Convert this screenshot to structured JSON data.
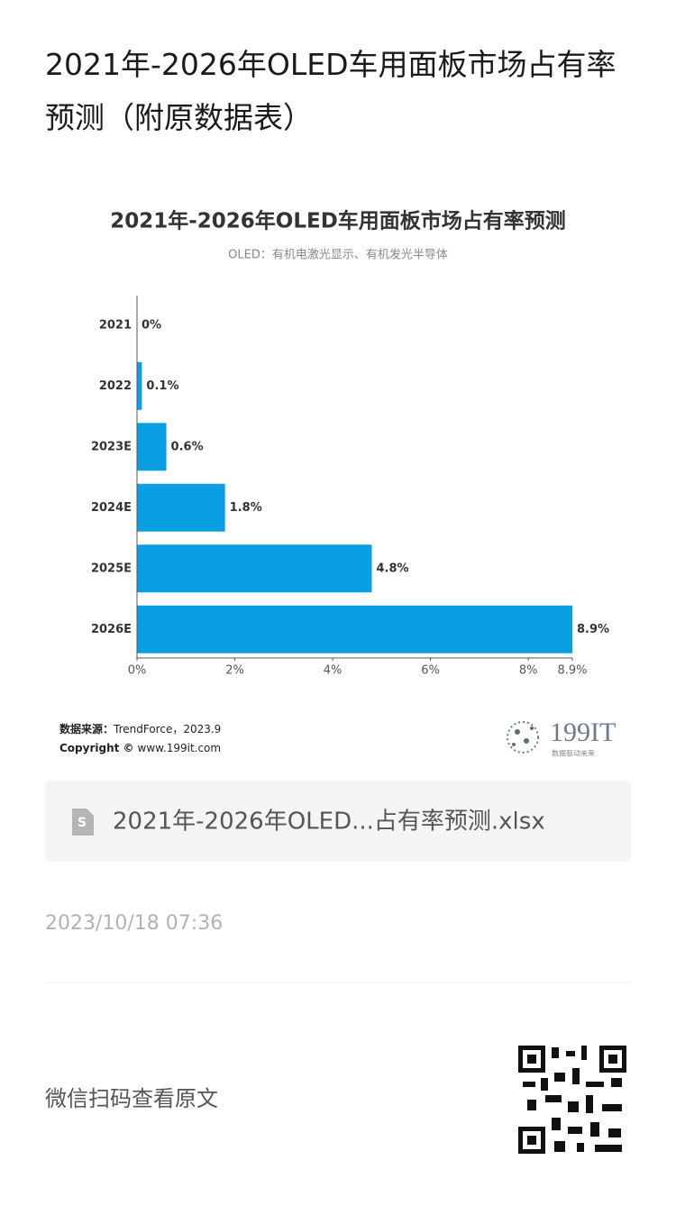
{
  "header": {
    "title": "2021年-2026年OLED车用面板市场占有率预测（附原数据表）"
  },
  "chart_data": {
    "type": "hbar",
    "title": "2021年-2026年OLED车用面板市场占有率预测",
    "subtitle": "OLED：有机电激光显示、有机发光半导体",
    "categories": [
      "2021",
      "2022",
      "2023E",
      "2024E",
      "2025E",
      "2026E"
    ],
    "values": [
      0,
      0.1,
      0.6,
      1.8,
      4.8,
      8.9
    ],
    "value_labels": [
      "0%",
      "0.1%",
      "0.6%",
      "1.8%",
      "4.8%",
      "8.9%"
    ],
    "color": "#0a9ee2",
    "xlim": [
      0,
      8.9
    ],
    "xticks": [
      {
        "value": 0,
        "label": "0%"
      },
      {
        "value": 2,
        "label": "2%"
      },
      {
        "value": 4,
        "label": "4%"
      },
      {
        "value": 6,
        "label": "6%"
      },
      {
        "value": 8,
        "label": "8%"
      },
      {
        "value": 8.9,
        "label": "8.9%"
      }
    ],
    "grid": false,
    "source_label": "数据来源：",
    "source": "TrendForce，2023.9",
    "copyright_label": "Copyright ©",
    "copyright_url": "www.199it.com"
  },
  "logo": {
    "name": "199IT",
    "slogan": "数据驱动未来"
  },
  "attachment": {
    "filename": "2021年-2026年OLED...占有率预测.xlsx"
  },
  "footer": {
    "date": "2023/10/18 07:36",
    "qr_hint": "微信扫码查看原文"
  }
}
